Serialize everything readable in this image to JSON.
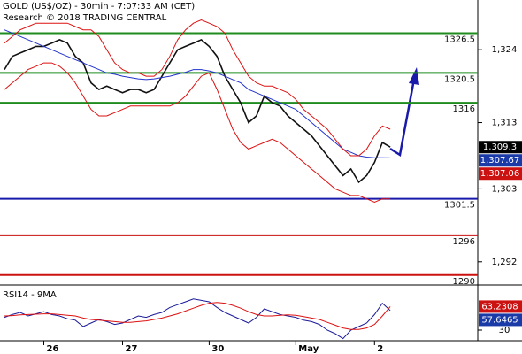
{
  "chart_data": [
    {
      "type": "line",
      "title": "GOLD (US$/OZ) - 30min - 7:07:33 AM (CET)",
      "subtitle": "Research © 2018 TRADING CENTRAL",
      "categories": [
        null,
        null,
        null,
        null,
        null,
        "26",
        null,
        null,
        null,
        null,
        null,
        null,
        null,
        null,
        null,
        "27",
        null,
        null,
        null,
        null,
        null,
        null,
        null,
        null,
        null,
        null,
        "30",
        null,
        null,
        null,
        null,
        null,
        null,
        null,
        null,
        null,
        null,
        "May",
        null,
        null,
        null,
        null,
        null,
        null,
        null,
        null,
        null,
        "2",
        null,
        null
      ],
      "ylim": [
        1288.5,
        1331.5
      ],
      "yticks": [
        {
          "value": 1292,
          "label": "1,292"
        },
        {
          "value": 1303,
          "label": "1,303"
        },
        {
          "value": 1313,
          "label": "1,313"
        },
        {
          "value": 1324,
          "label": "1,324"
        }
      ],
      "series": [
        {
          "color": "#111111",
          "values": [
            1321,
            1323,
            1323.5,
            1324,
            1324.5,
            1324.5,
            1325,
            1325.5,
            1325,
            1323,
            1322,
            1319,
            1318,
            1318.5,
            1318,
            1317.5,
            1318,
            1318,
            1317.5,
            1318,
            1320,
            1322,
            1324,
            1324.5,
            1325,
            1325.5,
            1324.5,
            1323,
            1320,
            1318,
            1316,
            1313,
            1314,
            1317,
            1316,
            1315.5,
            1314,
            1313,
            1312,
            1311,
            1309.5,
            1308,
            1306.5,
            1305,
            1306,
            1304,
            1305,
            1307,
            1310,
            1309.3
          ]
        },
        {
          "color": "#2233cc",
          "values": [
            1327,
            1326.5,
            1326,
            1325.5,
            1325,
            1324.5,
            1324,
            1323.5,
            1323,
            1322.5,
            1322,
            1321.5,
            1321,
            1320.5,
            1320.3,
            1320,
            1319.8,
            1319.6,
            1319.5,
            1319.6,
            1319.8,
            1320,
            1320.3,
            1320.6,
            1321,
            1321,
            1320.8,
            1320.5,
            1320,
            1319.5,
            1319,
            1318,
            1317.5,
            1317,
            1316.5,
            1316,
            1315.5,
            1315,
            1314,
            1313,
            1312,
            1311,
            1310,
            1309,
            1308.5,
            1308,
            1307.8,
            1307.7,
            1307.7,
            1307.67
          ]
        },
        {
          "color": "#dd1111",
          "values": [
            1325,
            1326,
            1327,
            1327.5,
            1328,
            1328,
            1328,
            1328,
            1328,
            1327.5,
            1327,
            1327,
            1326,
            1324,
            1322,
            1321,
            1320.5,
            1320.5,
            1320,
            1320,
            1321,
            1323,
            1325.5,
            1327,
            1328,
            1328.5,
            1328,
            1327.5,
            1326.5,
            1324,
            1322,
            1320,
            1319,
            1318.5,
            1318.5,
            1318,
            1317.5,
            1316.5,
            1315,
            1314,
            1313,
            1312,
            1310.5,
            1309,
            1308,
            1308,
            1309,
            1311,
            1312.5,
            1312
          ]
        },
        {
          "color": "#dd1111",
          "values": [
            1318,
            1319,
            1320,
            1321,
            1321.5,
            1322,
            1322,
            1321.5,
            1320.5,
            1319,
            1317,
            1315,
            1314,
            1314,
            1314.5,
            1315,
            1315.5,
            1315.5,
            1315.5,
            1315.5,
            1315.5,
            1315.5,
            1316,
            1317,
            1318.5,
            1320,
            1320.5,
            1318,
            1315,
            1312,
            1310,
            1309,
            1309.5,
            1310,
            1310.5,
            1310,
            1309,
            1308,
            1307,
            1306,
            1305,
            1304,
            1303,
            1302.5,
            1302,
            1302,
            1301.5,
            1301,
            1301.5,
            1301.5
          ]
        }
      ],
      "levels": [
        {
          "value": 1326.5,
          "color": "#1e8c1e"
        },
        {
          "value": 1320.5,
          "color": "#1e8c1e"
        },
        {
          "value": 1316,
          "color": "#1e8c1e"
        },
        {
          "value": 1301.5,
          "color": "#1a1aaa"
        },
        {
          "value": 1296,
          "color": "#cc1111"
        },
        {
          "value": 1290,
          "color": "#cc1111"
        }
      ],
      "price_labels": [
        {
          "value": 1309.3,
          "label": "1,309.3",
          "color": "#000000"
        },
        {
          "value": 1307.67,
          "label": "1,307.67",
          "color": "#1a3aa8"
        },
        {
          "value": 1307.06,
          "label": "1,307.06",
          "color": "#cc1111"
        }
      ]
    },
    {
      "type": "line",
      "title": "RSI14 - 9MA",
      "ylim": [
        15,
        90
      ],
      "yticks": [
        30
      ],
      "series": [
        {
          "color": "#1a1a99",
          "values": [
            48,
            52,
            55,
            50,
            53,
            56,
            52,
            50,
            46,
            44,
            35,
            40,
            45,
            42,
            38,
            40,
            45,
            50,
            48,
            52,
            55,
            62,
            66,
            70,
            74,
            72,
            70,
            62,
            55,
            50,
            45,
            40,
            48,
            60,
            56,
            52,
            50,
            48,
            44,
            42,
            38,
            30,
            25,
            18,
            30,
            35,
            40,
            52,
            68,
            57.6465
          ]
        },
        {
          "color": "#dd1111",
          "values": [
            50,
            50.5,
            51.5,
            52,
            52.5,
            53,
            53,
            52,
            51,
            50,
            47,
            45,
            44,
            43,
            42,
            41,
            41,
            42,
            43,
            45,
            47,
            50,
            53,
            57,
            61,
            65,
            68,
            69,
            68,
            65,
            61,
            56,
            52,
            50,
            50,
            51,
            51.5,
            51,
            49,
            47,
            45,
            41,
            37,
            33,
            31,
            31,
            33,
            38,
            50,
            63.2308
          ]
        }
      ],
      "price_labels": [
        {
          "value": 63.2308,
          "color": "#cc1111"
        },
        {
          "value": 57.6465,
          "color": "#1a3aa8"
        }
      ]
    }
  ]
}
